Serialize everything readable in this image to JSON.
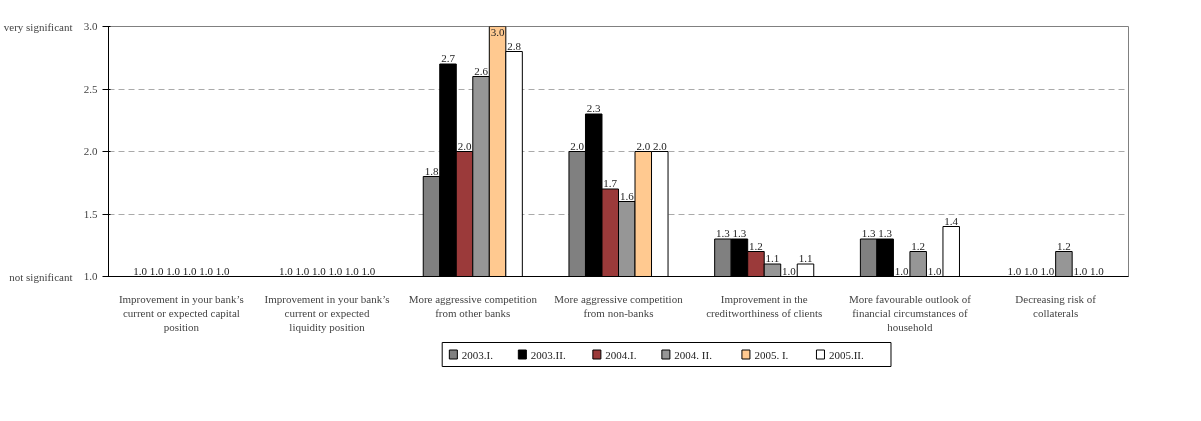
{
  "chart_data": {
    "type": "bar",
    "categories": [
      "Improvement in your bank’s current or expected capital position",
      "Improvement in your bank’s current or expected liquidity position",
      "More aggressive competition from other banks",
      "More aggressive competition from non-banks",
      "Improvement in the creditworthiness of clients",
      "More favourable outlook of financial circumstances of household",
      "Decreasing risk of collaterals"
    ],
    "series": [
      {
        "name": "2003.I.",
        "color": "#808080",
        "values": [
          1.0,
          1.0,
          1.8,
          2.0,
          1.3,
          1.3,
          1.0
        ],
        "value_labels": [
          "1.0",
          "1.0",
          "1.8",
          "2.0",
          "1.3",
          "1.3",
          "1.0"
        ]
      },
      {
        "name": "2003.II.",
        "color": "#000000",
        "values": [
          1.0,
          1.0,
          2.7,
          2.3,
          1.3,
          1.3,
          1.0
        ],
        "value_labels": [
          "1.0",
          "1.0",
          "2.7",
          "2.3",
          "1.3",
          "1.3",
          "1.0"
        ]
      },
      {
        "name": "2004.I.",
        "color": "#9b3a3a",
        "values": [
          1.0,
          1.0,
          2.0,
          1.7,
          1.2,
          1.0,
          1.0
        ],
        "value_labels": [
          "1.0",
          "1.0",
          "2.0",
          "1.7",
          "1.2",
          "1.0",
          "1.0"
        ]
      },
      {
        "name": "2004. II.",
        "color": "#969696",
        "values": [
          1.0,
          1.0,
          2.6,
          1.6,
          1.1,
          1.2,
          1.2
        ],
        "value_labels": [
          "1.0",
          "1.0",
          "2.6",
          "1.6",
          "1.1",
          "1.2",
          "1.2"
        ]
      },
      {
        "name": "2005. I.",
        "color": "#ffc990",
        "values": [
          1.0,
          1.0,
          3.0,
          2.0,
          1.0,
          1.0,
          1.0
        ],
        "value_labels": [
          "1.0",
          "1.0",
          "3.0",
          "2.0",
          "1.0",
          "1.0",
          "1.0"
        ]
      },
      {
        "name": "2005.II.",
        "color": "#ffffff",
        "values": [
          1.0,
          1.0,
          2.8,
          2.0,
          1.1,
          1.4,
          1.0
        ],
        "value_labels": [
          "1.0",
          "1.0",
          "2.8",
          "2.0",
          "1.1",
          "1.4",
          "1.0"
        ]
      }
    ],
    "ylim": [
      1.0,
      3.0
    ],
    "yticks": [
      {
        "value": 1.0,
        "label": "1.0"
      },
      {
        "value": 1.5,
        "label": "1.5"
      },
      {
        "value": 2.0,
        "label": "2.0"
      },
      {
        "value": 2.5,
        "label": "2.5"
      },
      {
        "value": 3.0,
        "label": "3.0"
      }
    ],
    "annotations": [
      "very significant",
      "not significant"
    ],
    "grid": "y",
    "legend": "bottom"
  }
}
